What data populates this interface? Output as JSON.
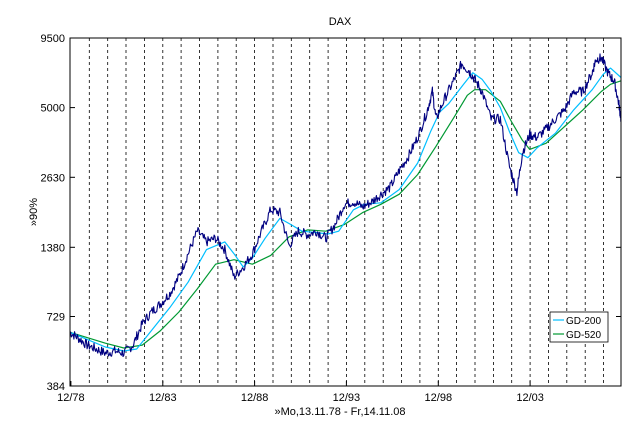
{
  "chart_data": {
    "type": "line",
    "title": "DAX",
    "xlabel": "»Mo,13.11.78 - Fr,14.11.08",
    "ylabel": "»90%",
    "y_scale": "log",
    "ylim": [
      384,
      9500
    ],
    "y_ticks": [
      384,
      729,
      1380,
      2630,
      5000,
      9500
    ],
    "y_tick_labels": [
      "384",
      "729",
      "1380",
      "2630",
      "5000",
      "9500"
    ],
    "xlim": [
      1978.87,
      2008.87
    ],
    "x_ticks": [
      1978.92,
      1983.92,
      1988.92,
      1993.92,
      1998.92,
      2003.92
    ],
    "x_tick_labels": [
      "12/78",
      "12/83",
      "12/88",
      "12/93",
      "12/98",
      "12/03"
    ],
    "vertical_grid": "dashed, yearly",
    "legend_position": "lower right",
    "colors": {
      "price": "#000080",
      "gd200": "#00BFFF",
      "gd520": "#009933"
    },
    "series": [
      {
        "key": "price",
        "x": [
          1978.87,
          1979.3,
          1979.8,
          1980.3,
          1980.8,
          1981.3,
          1981.8,
          1982.3,
          1982.8,
          1983.3,
          1983.8,
          1984.3,
          1984.8,
          1985.3,
          1985.8,
          1986.3,
          1986.8,
          1987.3,
          1987.8,
          1988.3,
          1988.8,
          1989.3,
          1989.8,
          1990.3,
          1990.8,
          1991.3,
          1991.8,
          1992.3,
          1992.8,
          1993.3,
          1993.8,
          1994.3,
          1994.8,
          1995.3,
          1995.8,
          1996.3,
          1996.8,
          1997.3,
          1997.8,
          1998.3,
          1998.6,
          1998.8,
          1999.3,
          1999.8,
          2000.2,
          2000.6,
          2000.9,
          2001.3,
          2001.8,
          2002.3,
          2002.8,
          2003.2,
          2003.5,
          2003.9,
          2004.3,
          2004.8,
          2005.3,
          2005.8,
          2006.3,
          2006.8,
          2007.3,
          2007.5,
          2007.8,
          2008.2,
          2008.5,
          2008.75,
          2008.87
        ],
        "values": [
          630,
          600,
          560,
          540,
          520,
          530,
          520,
          560,
          680,
          760,
          820,
          900,
          1050,
          1300,
          1600,
          1450,
          1500,
          1350,
          1050,
          1150,
          1300,
          1600,
          1950,
          1900,
          1400,
          1600,
          1550,
          1600,
          1500,
          1700,
          2050,
          2100,
          2000,
          2100,
          2250,
          2400,
          2800,
          3200,
          3800,
          4800,
          5800,
          4500,
          5500,
          6500,
          7500,
          7000,
          6500,
          5800,
          4500,
          4500,
          2900,
          2300,
          3300,
          3900,
          3800,
          4100,
          4500,
          4900,
          5800,
          5800,
          6900,
          7800,
          7900,
          6800,
          6400,
          5200,
          4500
        ]
      },
      {
        "key": "gd200",
        "name": "GD-200",
        "x": [
          1978.87,
          1979.8,
          1980.8,
          1981.8,
          1982.5,
          1983.3,
          1984.3,
          1985.3,
          1986.3,
          1987.3,
          1987.8,
          1988.3,
          1988.8,
          1989.5,
          1990.3,
          1990.9,
          1991.5,
          1992.3,
          1992.9,
          1993.5,
          1994.3,
          1994.9,
          1995.8,
          1996.8,
          1997.8,
          1998.5,
          1999.0,
          1999.5,
          2000.3,
          2000.8,
          2001.3,
          2001.8,
          2002.3,
          2002.8,
          2003.3,
          2003.8,
          2004.3,
          2005.3,
          2006.3,
          2007.3,
          2007.9,
          2008.3,
          2008.87
        ],
        "values": [
          630,
          590,
          550,
          530,
          540,
          640,
          790,
          1000,
          1350,
          1450,
          1300,
          1150,
          1250,
          1500,
          1800,
          1700,
          1600,
          1580,
          1560,
          1600,
          1950,
          2050,
          2080,
          2350,
          3000,
          4000,
          4800,
          5200,
          6200,
          6900,
          6500,
          5800,
          5000,
          4000,
          3300,
          3150,
          3450,
          3950,
          4900,
          5900,
          6800,
          7200,
          6600
        ]
      },
      {
        "key": "gd520",
        "name": "GD-520",
        "x": [
          1978.87,
          1979.8,
          1980.8,
          1981.8,
          1982.8,
          1983.8,
          1984.8,
          1985.8,
          1986.8,
          1987.8,
          1988.8,
          1989.8,
          1990.8,
          1991.8,
          1992.8,
          1993.8,
          1994.8,
          1995.8,
          1996.8,
          1997.8,
          1998.8,
          1999.8,
          2000.5,
          2000.9,
          2001.5,
          2002.3,
          2002.9,
          2003.5,
          2003.9,
          2004.8,
          2005.8,
          2006.8,
          2007.8,
          2008.3,
          2008.87
        ],
        "values": [
          630,
          600,
          570,
          545,
          560,
          640,
          760,
          940,
          1180,
          1230,
          1180,
          1280,
          1520,
          1620,
          1600,
          1700,
          1900,
          2050,
          2250,
          2700,
          3500,
          4600,
          5600,
          5900,
          5900,
          5300,
          4400,
          3700,
          3400,
          3600,
          4200,
          4900,
          5800,
          6200,
          6400
        ]
      }
    ]
  }
}
